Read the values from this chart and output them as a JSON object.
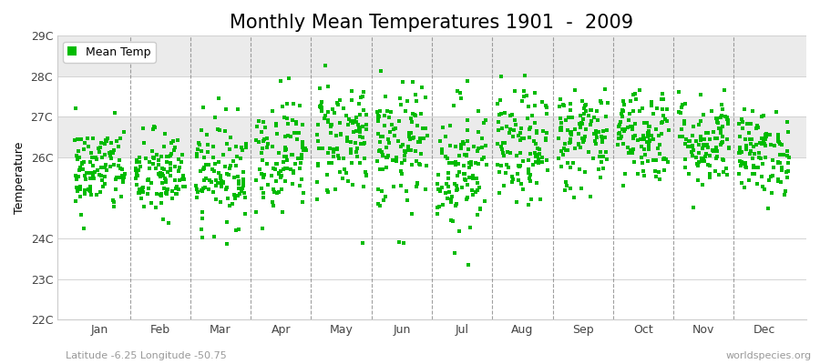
{
  "title": "Monthly Mean Temperatures 1901  -  2009",
  "ylabel": "Temperature",
  "ylim": [
    22,
    29
  ],
  "yticks": [
    22,
    23,
    24,
    26,
    27,
    28,
    29
  ],
  "ytick_labels": [
    "22C",
    "23C",
    "24C",
    "26C",
    "27C",
    "28C",
    "29C"
  ],
  "months": [
    "Jan",
    "Feb",
    "Mar",
    "Apr",
    "May",
    "Jun",
    "Jul",
    "Aug",
    "Sep",
    "Oct",
    "Nov",
    "Dec"
  ],
  "marker_color": "#00bb00",
  "marker": "s",
  "marker_size": 3.5,
  "legend_label": "Mean Temp",
  "subtitle_left": "Latitude -6.25 Longitude -50.75",
  "subtitle_right": "worldspecies.org",
  "bg_color": "#ffffff",
  "plot_bg_color": "#ffffff",
  "title_fontsize": 15,
  "label_fontsize": 9,
  "tick_fontsize": 9,
  "n_years": 109,
  "monthly_means": [
    25.7,
    25.55,
    25.65,
    26.1,
    26.5,
    26.2,
    25.8,
    26.2,
    26.5,
    26.6,
    26.4,
    26.1
  ],
  "monthly_stds": [
    0.55,
    0.55,
    0.65,
    0.7,
    0.75,
    0.8,
    0.85,
    0.7,
    0.65,
    0.6,
    0.58,
    0.52
  ],
  "seed": 42,
  "hband_colors": [
    "#ffffff",
    "#ffffff",
    "#ffffff",
    "#ffffff",
    "#ebebeb",
    "#ffffff",
    "#ebebeb"
  ],
  "hband_ranges": [
    [
      22,
      23
    ],
    [
      23,
      24
    ],
    [
      24,
      25
    ],
    [
      25,
      26
    ],
    [
      26,
      27
    ],
    [
      27,
      28
    ],
    [
      28,
      29
    ]
  ]
}
